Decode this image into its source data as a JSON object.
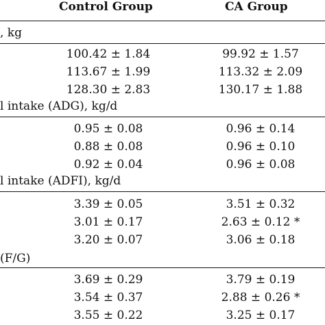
{
  "headers": {
    "control": "Control Group",
    "ca": "CA Group"
  },
  "sections": [
    {
      "label": ", kg",
      "rows": [
        {
          "control": "100.42 ± 1.84",
          "ca": "99.92 ± 1.57"
        },
        {
          "control": "113.67 ± 1.99",
          "ca": "113.32 ± 2.09"
        },
        {
          "control": "128.30 ± 2.83",
          "ca": "130.17 ± 1.88"
        }
      ]
    },
    {
      "label": "l intake (ADG), kg/d",
      "rows": [
        {
          "control": "0.95 ± 0.08",
          "ca": "0.96 ± 0.14"
        },
        {
          "control": "0.88 ± 0.08",
          "ca": "0.96 ± 0.10"
        },
        {
          "control": "0.92 ± 0.04",
          "ca": "0.96 ± 0.08"
        }
      ]
    },
    {
      "label": "l intake (ADFI), kg/d",
      "rows": [
        {
          "control": "3.39 ± 0.05",
          "ca": "3.51 ± 0.32"
        },
        {
          "control": "3.01 ± 0.17",
          "ca": "2.63 ± 0.12 *"
        },
        {
          "control": "3.20 ± 0.07",
          "ca": "3.06 ± 0.18"
        }
      ]
    },
    {
      "label": "(F/G)",
      "rows": [
        {
          "control": "3.69 ± 0.29",
          "ca": "3.79 ± 0.19"
        },
        {
          "control": "3.54 ± 0.37",
          "ca": "2.88 ± 0.26 *"
        },
        {
          "control": "3.55 ± 0.22",
          "ca": "3.25 ± 0.17"
        }
      ]
    }
  ]
}
